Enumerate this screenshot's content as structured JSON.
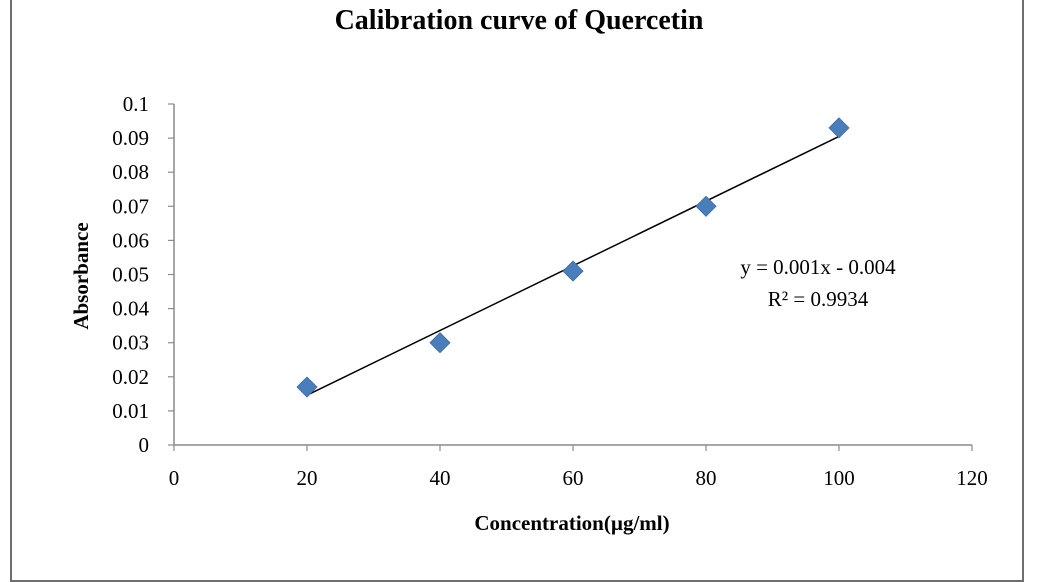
{
  "chart_data": {
    "type": "scatter",
    "title": "Calibration  curve of Quercetin",
    "xlabel": "Concentration(µg/ml)",
    "ylabel": "Absorbance",
    "xlim": [
      0,
      120
    ],
    "ylim": [
      0,
      0.1
    ],
    "x_ticks": [
      "0",
      "20",
      "40",
      "60",
      "80",
      "100",
      "120"
    ],
    "y_ticks": [
      "0",
      "0.01",
      "0.02",
      "0.03",
      "0.04",
      "0.05",
      "0.06",
      "0.07",
      "0.08",
      "0.09",
      "0.1"
    ],
    "series": [
      {
        "points": [
          {
            "x": 20,
            "y": 0.017
          },
          {
            "x": 40,
            "y": 0.03
          },
          {
            "x": 60,
            "y": 0.051
          },
          {
            "x": 80,
            "y": 0.07
          },
          {
            "x": 100,
            "y": 0.093
          }
        ],
        "color": "#4a7ebb",
        "marker": "diamond"
      }
    ],
    "trendline": {
      "type": "linear",
      "x_range": [
        20,
        100
      ],
      "y_range": [
        0.0146,
        0.0905
      ],
      "color": "#000000"
    },
    "annotations": {
      "equation": "y = 0.001x  - 0.004",
      "r_squared": "R² = 0.9934"
    },
    "grid": false,
    "legend": "none"
  }
}
